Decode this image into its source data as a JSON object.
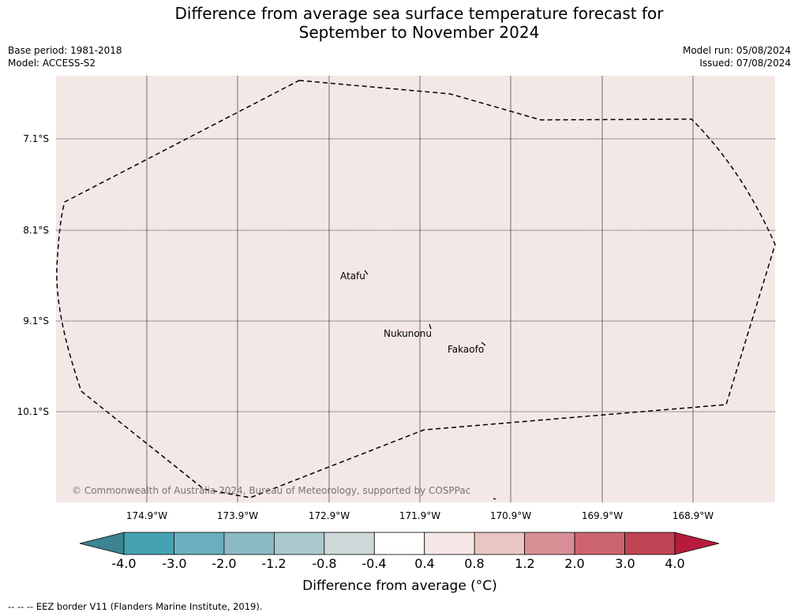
{
  "title": {
    "line1": "Difference from average sea surface temperature forecast for",
    "line2": "September to November 2024"
  },
  "meta": {
    "base_period": "Base period: 1981-2018",
    "model": "Model: ACCESS-S2",
    "model_run": "Model run: 05/08/2024",
    "issued": "Issued: 07/08/2024"
  },
  "map": {
    "background_color": "#f4e8e7",
    "lat_labels": [
      "7.1°S",
      "8.1°S",
      "9.1°S",
      "10.1°S"
    ],
    "lon_labels": [
      "174.9°W",
      "173.9°W",
      "172.9°W",
      "171.9°W",
      "170.9°W",
      "169.9°W",
      "168.9°W"
    ],
    "places": [
      {
        "name": "Atafu"
      },
      {
        "name": "Nukunonu"
      },
      {
        "name": "Fakaofo"
      }
    ],
    "copyright": "© Commonwealth of Australia 2024, Bureau of Meteorology, supported by COSPPac"
  },
  "colorbar": {
    "tick_labels": [
      "-4.0",
      "-3.0",
      "-2.0",
      "-1.2",
      "-0.8",
      "-0.4",
      "0.4",
      "0.8",
      "1.2",
      "2.0",
      "3.0",
      "4.0"
    ],
    "colors": [
      "#45a3b1",
      "#6aafbd",
      "#8cbac3",
      "#aac9cc",
      "#d0d9d9",
      "#ffffff",
      "#f6e7e6",
      "#eac6c3",
      "#d78f95",
      "#cc6470",
      "#bf4454"
    ],
    "extend_low_color": "#3b8490",
    "extend_high_color": "#b51b3d",
    "label": "Difference from average (°C)"
  },
  "footer": {
    "legend_text": "--  --  -- EEZ border V11 (Flanders Marine Institute, 2019)."
  }
}
